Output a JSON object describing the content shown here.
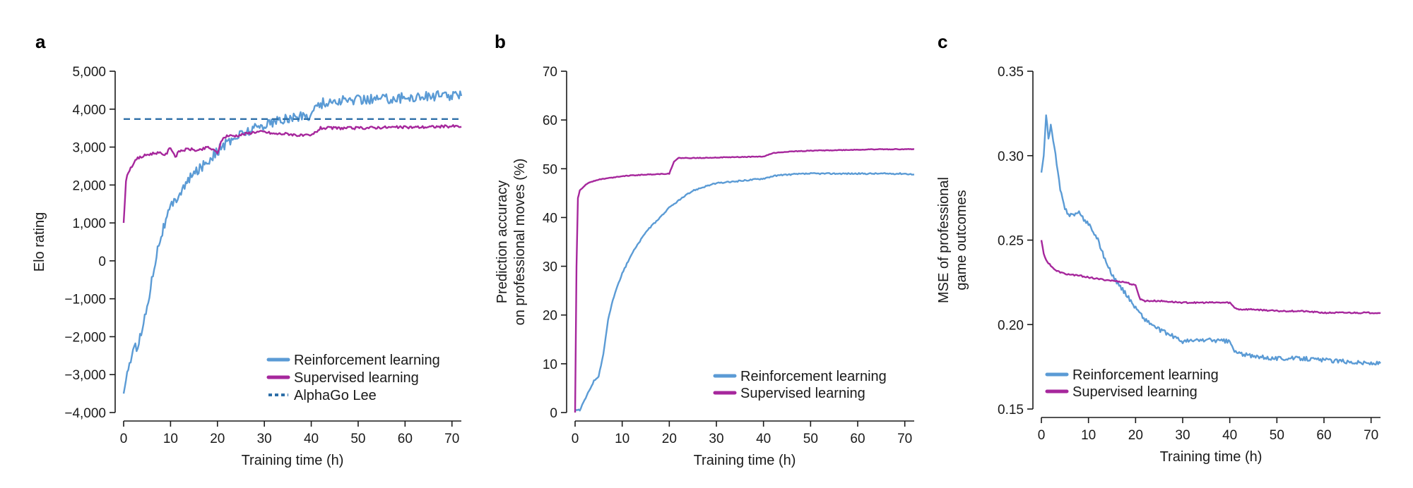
{
  "colors": {
    "rl": "#5b9bd5",
    "sl": "#a6279c",
    "ref": "#2e6fa8"
  },
  "chart_data": [
    {
      "panel": "a",
      "type": "line",
      "xlabel": "Training time (h)",
      "ylabel": "Elo rating",
      "xlim": [
        0,
        72
      ],
      "ylim": [
        -4000,
        5000
      ],
      "xticks": [
        0,
        10,
        20,
        30,
        40,
        50,
        60,
        70
      ],
      "xtick_labels": [
        "0",
        "10",
        "20",
        "30",
        "40",
        "50",
        "60",
        "70"
      ],
      "yticks": [
        -4000,
        -3000,
        -2000,
        -1000,
        0,
        1000,
        2000,
        3000,
        4000,
        5000
      ],
      "ytick_labels": [
        "−4,000",
        "−3,000",
        "−2,000",
        "−1,000",
        "0",
        "1,000",
        "2,000",
        "3,000",
        "4,000",
        "5,000"
      ],
      "legend_position": "bottom-right",
      "series": [
        {
          "name": "Reinforcement learning",
          "color_key": "rl",
          "style": "solid",
          "x": [
            0,
            1,
            2,
            3,
            4,
            5,
            6,
            7,
            8,
            10,
            12,
            15,
            18,
            20,
            22,
            25,
            28,
            30,
            35,
            40,
            41,
            42,
            45,
            50,
            55,
            60,
            65,
            70,
            72
          ],
          "y": [
            -3500,
            -2800,
            -2400,
            -2200,
            -1800,
            -1200,
            -500,
            200,
            700,
            1400,
            1800,
            2300,
            2650,
            2900,
            3100,
            3350,
            3500,
            3600,
            3750,
            3850,
            4100,
            4150,
            4200,
            4250,
            4280,
            4300,
            4350,
            4350,
            4350
          ]
        },
        {
          "name": "Supervised learning",
          "color_key": "sl",
          "style": "solid",
          "x": [
            0,
            0.5,
            1,
            2,
            3,
            5,
            7,
            9,
            10,
            11,
            12,
            14,
            16,
            18,
            20,
            21,
            22,
            24,
            26,
            28,
            30,
            32,
            35,
            38,
            40,
            42,
            45,
            50,
            55,
            60,
            65,
            70,
            72
          ],
          "y": [
            1000,
            2100,
            2350,
            2550,
            2700,
            2800,
            2850,
            2800,
            3000,
            2750,
            2900,
            2950,
            2900,
            3000,
            2850,
            3200,
            3300,
            3300,
            3350,
            3400,
            3400,
            3350,
            3350,
            3300,
            3300,
            3500,
            3500,
            3500,
            3520,
            3520,
            3530,
            3550,
            3540
          ]
        },
        {
          "name": "AlphaGo Lee",
          "color_key": "ref",
          "style": "dashed",
          "x": [
            0,
            72
          ],
          "y": [
            3739,
            3739
          ]
        }
      ]
    },
    {
      "panel": "b",
      "type": "line",
      "xlabel": "Training time (h)",
      "ylabel_lines": [
        "Prediction accuracy",
        "on professional moves (%)"
      ],
      "xlim": [
        0,
        72
      ],
      "ylim": [
        0,
        70
      ],
      "xticks": [
        0,
        10,
        20,
        30,
        40,
        50,
        60,
        70
      ],
      "xtick_labels": [
        "0",
        "10",
        "20",
        "30",
        "40",
        "50",
        "60",
        "70"
      ],
      "yticks": [
        0,
        10,
        20,
        30,
        40,
        50,
        60,
        70
      ],
      "ytick_labels": [
        "0",
        "10",
        "20",
        "30",
        "40",
        "50",
        "60",
        "70"
      ],
      "legend_position": "bottom-right",
      "series": [
        {
          "name": "Reinforcement learning",
          "color_key": "rl",
          "style": "solid",
          "x": [
            0,
            1,
            2,
            3,
            4,
            5,
            6,
            7,
            8,
            9,
            10,
            12,
            15,
            18,
            20,
            22,
            25,
            28,
            30,
            35,
            40,
            42,
            45,
            50,
            55,
            60,
            65,
            70,
            72
          ],
          "y": [
            0.5,
            0.5,
            2.5,
            4.5,
            6.5,
            7.5,
            12,
            19,
            23,
            26,
            28.5,
            32.5,
            37,
            40,
            42,
            43.5,
            45.5,
            46.5,
            47,
            47.5,
            48,
            48.5,
            48.8,
            49,
            49,
            49,
            49,
            49,
            48.8
          ]
        },
        {
          "name": "Supervised learning",
          "color_key": "sl",
          "style": "solid",
          "x": [
            0,
            0.3,
            0.6,
            1,
            2,
            3,
            5,
            8,
            10,
            15,
            20,
            21,
            22,
            25,
            30,
            35,
            40,
            42,
            45,
            50,
            55,
            60,
            65,
            70,
            72
          ],
          "y": [
            0,
            30,
            44,
            45.5,
            46.5,
            47.2,
            47.8,
            48.2,
            48.5,
            48.8,
            49,
            51.5,
            52.2,
            52.2,
            52.3,
            52.4,
            52.5,
            53.2,
            53.5,
            53.7,
            53.8,
            53.9,
            54,
            54,
            54
          ]
        }
      ]
    },
    {
      "panel": "c",
      "type": "line",
      "xlabel": "Training time (h)",
      "ylabel_lines": [
        "MSE of professional",
        "game outcomes"
      ],
      "xlim": [
        0,
        72
      ],
      "ylim": [
        0.15,
        0.35
      ],
      "xticks": [
        0,
        10,
        20,
        30,
        40,
        50,
        60,
        70
      ],
      "xtick_labels": [
        "0",
        "10",
        "20",
        "30",
        "40",
        "50",
        "60",
        "70"
      ],
      "yticks": [
        0.15,
        0.2,
        0.25,
        0.3,
        0.35
      ],
      "ytick_labels": [
        "0.15",
        "0.20",
        "0.25",
        "0.30",
        "0.35"
      ],
      "legend_position": "bottom-left",
      "series": [
        {
          "name": "Reinforcement learning",
          "color_key": "rl",
          "style": "solid",
          "x": [
            0,
            0.5,
            1,
            1.5,
            2,
            3,
            4,
            5,
            6,
            8,
            9,
            10,
            12,
            14,
            16,
            18,
            20,
            22,
            25,
            28,
            30,
            35,
            40,
            41,
            42,
            45,
            50,
            55,
            60,
            65,
            70,
            72
          ],
          "y": [
            0.29,
            0.3,
            0.325,
            0.31,
            0.318,
            0.3,
            0.28,
            0.268,
            0.265,
            0.266,
            0.262,
            0.26,
            0.25,
            0.235,
            0.225,
            0.218,
            0.21,
            0.203,
            0.197,
            0.193,
            0.19,
            0.191,
            0.19,
            0.184,
            0.183,
            0.181,
            0.18,
            0.18,
            0.179,
            0.178,
            0.177,
            0.177
          ]
        },
        {
          "name": "Supervised learning",
          "color_key": "sl",
          "style": "solid",
          "x": [
            0,
            0.5,
            1,
            2,
            3,
            5,
            8,
            10,
            12,
            15,
            18,
            20,
            21,
            22,
            25,
            30,
            35,
            40,
            41,
            42,
            45,
            50,
            55,
            60,
            65,
            70,
            72
          ],
          "y": [
            0.25,
            0.242,
            0.238,
            0.235,
            0.232,
            0.23,
            0.229,
            0.228,
            0.227,
            0.226,
            0.225,
            0.223,
            0.215,
            0.214,
            0.214,
            0.213,
            0.213,
            0.213,
            0.21,
            0.209,
            0.209,
            0.208,
            0.208,
            0.207,
            0.207,
            0.207,
            0.207
          ]
        }
      ]
    }
  ]
}
